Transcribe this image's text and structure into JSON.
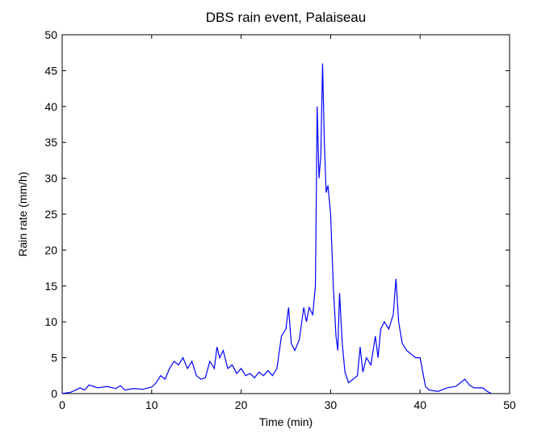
{
  "chart_data": {
    "type": "line",
    "title": "DBS rain event, Palaiseau",
    "x_label": "Time (min)",
    "y_label": "Rain rate (mm/h)",
    "xlim": [
      0,
      50
    ],
    "xticks": [
      0,
      10,
      20,
      30,
      40,
      50
    ],
    "ylim": [
      0,
      50
    ],
    "yticks": [
      0,
      5,
      10,
      15,
      20,
      25,
      30,
      35,
      40,
      45,
      50
    ],
    "grid": false,
    "series": [
      {
        "color": "#0000ff",
        "x": [
          0,
          1,
          2,
          2.5,
          3,
          3.5,
          4,
          5,
          6,
          6.5,
          7,
          8,
          9,
          10,
          10.5,
          11,
          11.5,
          12,
          12.5,
          13,
          13.5,
          14,
          14.5,
          15,
          15.5,
          16,
          16.5,
          17,
          17.3,
          17.6,
          18,
          18.5,
          19,
          19.5,
          20,
          20.5,
          21,
          21.5,
          22,
          22.5,
          23,
          23.5,
          24,
          24.5,
          25,
          25.3,
          25.6,
          26,
          26.5,
          27,
          27.3,
          27.6,
          28,
          28.3,
          28.5,
          28.7,
          28.9,
          29.1,
          29.3,
          29.5,
          29.7,
          30,
          30.3,
          30.6,
          30.8,
          31,
          31.3,
          31.6,
          32,
          32.5,
          33,
          33.3,
          33.6,
          34,
          34.5,
          35,
          35.3,
          35.6,
          36,
          36.5,
          37,
          37.3,
          37.6,
          38,
          38.5,
          39,
          39.5,
          40,
          40.3,
          40.6,
          41,
          42,
          43,
          44,
          45,
          45.5,
          46,
          47,
          47.5,
          48
        ],
        "values": [
          0,
          0.2,
          0.8,
          0.5,
          1.2,
          1,
          0.8,
          1,
          0.7,
          1.1,
          0.5,
          0.7,
          0.6,
          0.9,
          1.5,
          2.5,
          2,
          3.5,
          4.5,
          4,
          5,
          3.5,
          4.5,
          2.5,
          2,
          2.2,
          4.5,
          3.5,
          6.5,
          5,
          6,
          3.5,
          4,
          2.8,
          3.5,
          2.5,
          2.8,
          2.2,
          3,
          2.5,
          3.2,
          2.5,
          3.5,
          8,
          9,
          12,
          7,
          6,
          7.5,
          12,
          10,
          12,
          11,
          15,
          40,
          30,
          33,
          46,
          35,
          28,
          29,
          25,
          15,
          8,
          6,
          14,
          7,
          3,
          1.5,
          2,
          2.5,
          6.5,
          3,
          5,
          4,
          8,
          5,
          9,
          10,
          9,
          11,
          16,
          10,
          7,
          6,
          5.5,
          5,
          5,
          3,
          1,
          0.5,
          0.3,
          0.8,
          1,
          2,
          1.2,
          0.8,
          0.8,
          0.3,
          0
        ]
      }
    ]
  }
}
